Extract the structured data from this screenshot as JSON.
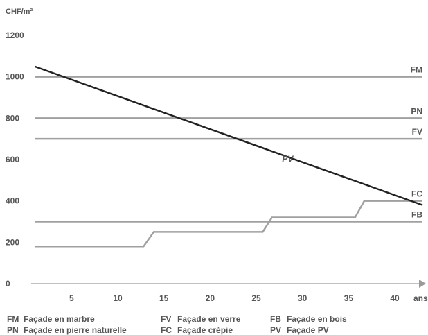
{
  "chart_data": {
    "type": "line",
    "ylabel": "CHF/m²",
    "xlabel": "ans",
    "xlim": [
      1,
      43
    ],
    "ylim": [
      0,
      1200
    ],
    "xticks": [
      5,
      10,
      15,
      20,
      25,
      30,
      35,
      40
    ],
    "yticks": [
      0,
      200,
      400,
      600,
      800,
      1000,
      1200
    ],
    "series": [
      {
        "name": "FM",
        "color": "#a0a0a0",
        "x": [
          1,
          43
        ],
        "y": [
          1000,
          1000
        ]
      },
      {
        "name": "PN",
        "color": "#a0a0a0",
        "x": [
          1,
          43
        ],
        "y": [
          800,
          800
        ]
      },
      {
        "name": "FV",
        "color": "#a0a0a0",
        "x": [
          1,
          43
        ],
        "y": [
          700,
          700
        ]
      },
      {
        "name": "FC",
        "color": "#a0a0a0",
        "x": [
          1,
          12.8,
          13.9,
          25.7,
          26.7,
          35.7,
          36.7,
          43
        ],
        "y": [
          180,
          180,
          250,
          250,
          320,
          320,
          400,
          400
        ]
      },
      {
        "name": "FB",
        "color": "#a0a0a0",
        "x": [
          1,
          43
        ],
        "y": [
          300,
          300
        ]
      },
      {
        "name": "PV",
        "color": "#222222",
        "x": [
          1,
          43
        ],
        "y": [
          1050,
          380
        ]
      }
    ]
  },
  "legend": [
    {
      "code": "FM",
      "label": "Façade en marbre"
    },
    {
      "code": "FV",
      "label": "Façade en verre"
    },
    {
      "code": "FB",
      "label": "Façade en bois"
    },
    {
      "code": "PN",
      "label": "Façade en pierre naturelle"
    },
    {
      "code": "FC",
      "label": "Façade crépie"
    },
    {
      "code": "PV",
      "label": "Façade PV"
    }
  ]
}
